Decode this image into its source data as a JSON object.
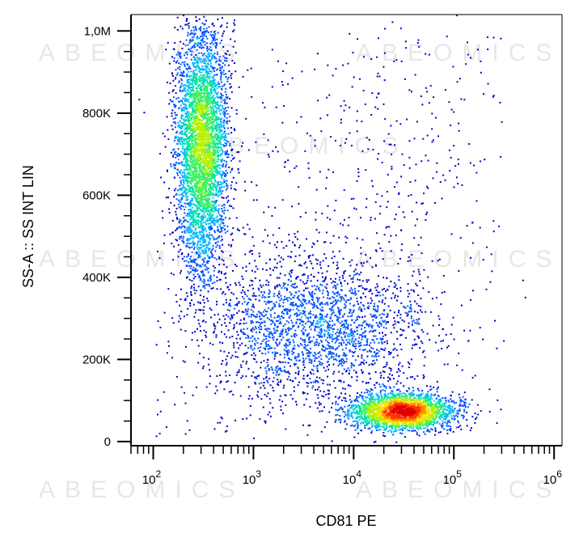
{
  "watermark": "ABEOMICS",
  "chart_data": {
    "type": "scatter",
    "style": "density-dot-plot",
    "xlabel": "CD81 PE",
    "ylabel": "SS-A :: SS INT LIN",
    "x_scale": "log",
    "y_scale": "linear",
    "xlim": [
      60,
      1200000
    ],
    "ylim": [
      -10000,
      1040000
    ],
    "x_ticks": [
      {
        "value": 100,
        "base": "10",
        "exp": "2"
      },
      {
        "value": 1000,
        "base": "10",
        "exp": "3"
      },
      {
        "value": 10000,
        "base": "10",
        "exp": "4"
      },
      {
        "value": 100000,
        "base": "10",
        "exp": "5"
      },
      {
        "value": 1000000,
        "base": "10",
        "exp": "6"
      }
    ],
    "y_ticks": [
      {
        "value": 0,
        "label": "0"
      },
      {
        "value": 200000,
        "label": "200K"
      },
      {
        "value": 400000,
        "label": "400K"
      },
      {
        "value": 600000,
        "label": "600K"
      },
      {
        "value": 800000,
        "label": "800K"
      },
      {
        "value": 1000000,
        "label": "1,0M"
      }
    ],
    "colormap": [
      "#0000c8",
      "#0050ff",
      "#00b4ff",
      "#00e0b0",
      "#40f060",
      "#b8f000",
      "#ffe000",
      "#ff9000",
      "#ff3000",
      "#e00000"
    ],
    "populations": [
      {
        "x_center": 300,
        "y_center": 720000,
        "x_spread_log10": 0.13,
        "y_spread": 150000,
        "count": 4200
      },
      {
        "x_center": 30000,
        "y_center": 75000,
        "x_spread_log10": 0.25,
        "y_spread": 22000,
        "count": 2600
      },
      {
        "x_center": 4000,
        "y_center": 280000,
        "x_spread_log10": 0.55,
        "y_spread": 90000,
        "count": 2200
      },
      {
        "x_center": 20000,
        "y_center": 650000,
        "x_spread_log10": 0.5,
        "y_spread": 200000,
        "count": 260
      }
    ],
    "grid": false,
    "legend": "none"
  }
}
